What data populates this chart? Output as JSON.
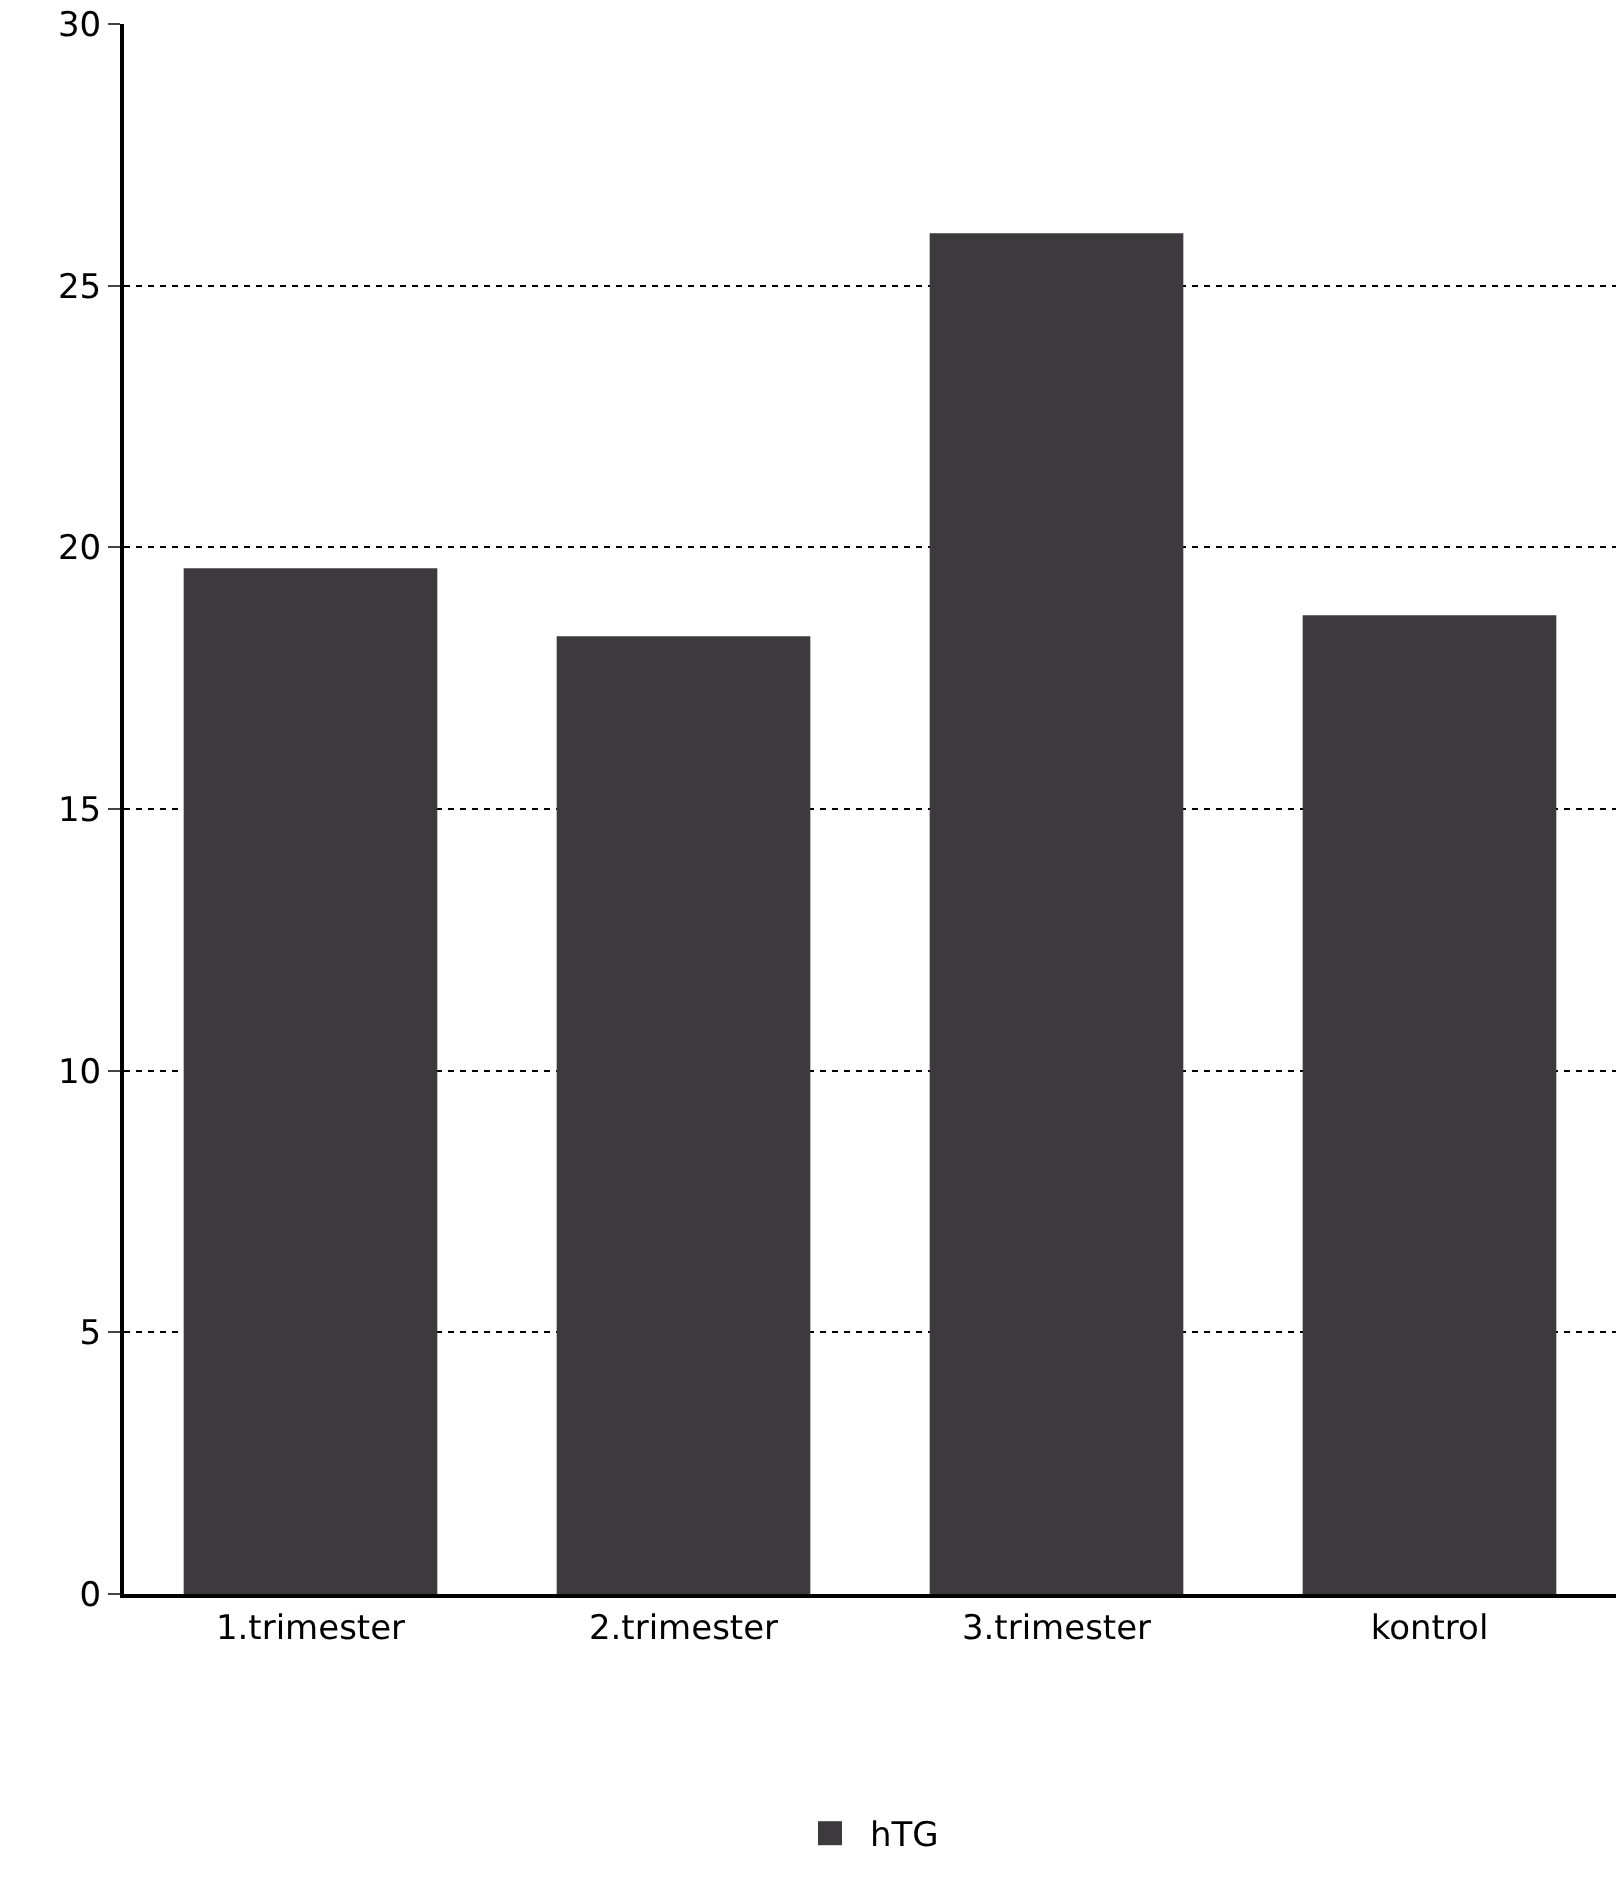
{
  "chart_data": {
    "type": "bar",
    "categories": [
      "1.trimester",
      "2.trimester",
      "3.trimester",
      "kontrol"
    ],
    "series": [
      {
        "name": "hTG",
        "color": "#3c3a3c",
        "values": [
          19.6,
          18.3,
          26.0,
          18.7
        ]
      }
    ],
    "ylim": [
      0,
      30
    ],
    "yticks": [
      0,
      5,
      10,
      15,
      20,
      25,
      30
    ],
    "grid": "y",
    "legend": "bottom"
  }
}
